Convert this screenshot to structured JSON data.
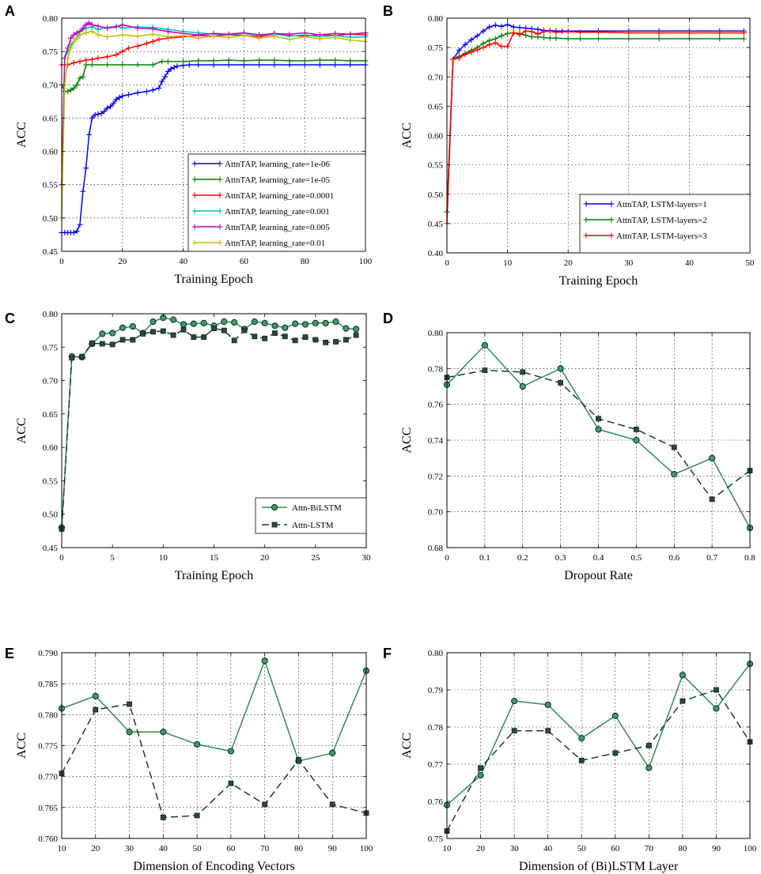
{
  "chart_data": [
    {
      "panel": "A",
      "type": "line",
      "xlabel": "Training Epoch",
      "ylabel": "ACC",
      "xlim": [
        0,
        100
      ],
      "ylim": [
        0.45,
        0.8
      ],
      "xticks": [
        0,
        20,
        40,
        60,
        80,
        100
      ],
      "yticks": [
        0.45,
        0.5,
        0.55,
        0.6,
        0.65,
        0.7,
        0.75,
        0.8
      ],
      "grid": true,
      "legend": "bottom-right",
      "marker": "plus",
      "series": [
        {
          "name": "AttnTAP, learning_rate=1e-06",
          "color": "#0000ff",
          "x": [
            0,
            1,
            2,
            3,
            4,
            5,
            6,
            7,
            8,
            9,
            10,
            11,
            12,
            13,
            14,
            15,
            16,
            17,
            18,
            19,
            20,
            22,
            25,
            28,
            30,
            32,
            33,
            34,
            35,
            36,
            37,
            38,
            40,
            42,
            45,
            50,
            55,
            60,
            65,
            70,
            75,
            80,
            85,
            90,
            95,
            100
          ],
          "y": [
            0.478,
            0.478,
            0.478,
            0.478,
            0.478,
            0.48,
            0.49,
            0.54,
            0.575,
            0.625,
            0.65,
            0.655,
            0.656,
            0.657,
            0.66,
            0.665,
            0.667,
            0.672,
            0.678,
            0.681,
            0.683,
            0.685,
            0.688,
            0.69,
            0.692,
            0.695,
            0.705,
            0.712,
            0.72,
            0.724,
            0.726,
            0.728,
            0.729,
            0.73,
            0.73,
            0.73,
            0.73,
            0.73,
            0.73,
            0.73,
            0.73,
            0.73,
            0.73,
            0.73,
            0.73,
            0.73
          ]
        },
        {
          "name": "AttnTAP, learning_rate=1e-05",
          "color": "#008000",
          "x": [
            0,
            1,
            2,
            3,
            4,
            5,
            6,
            7,
            8,
            10,
            15,
            20,
            25,
            30,
            33,
            35,
            40,
            45,
            50,
            55,
            60,
            65,
            70,
            75,
            80,
            85,
            90,
            95,
            100
          ],
          "y": [
            0.7,
            0.69,
            0.69,
            0.692,
            0.695,
            0.7,
            0.71,
            0.712,
            0.73,
            0.73,
            0.73,
            0.73,
            0.73,
            0.73,
            0.735,
            0.735,
            0.735,
            0.736,
            0.736,
            0.737,
            0.736,
            0.737,
            0.737,
            0.736,
            0.736,
            0.737,
            0.737,
            0.736,
            0.736
          ]
        },
        {
          "name": "AttnTAP, learning_rate=0.0001",
          "color": "#ff0000",
          "x": [
            0,
            2,
            4,
            6,
            8,
            10,
            12,
            15,
            18,
            20,
            22,
            25,
            28,
            30,
            32,
            35,
            40,
            45,
            50,
            55,
            60,
            65,
            70,
            75,
            80,
            85,
            90,
            95,
            100
          ],
          "y": [
            0.73,
            0.73,
            0.733,
            0.735,
            0.737,
            0.738,
            0.74,
            0.742,
            0.745,
            0.75,
            0.755,
            0.758,
            0.762,
            0.765,
            0.768,
            0.77,
            0.772,
            0.774,
            0.773,
            0.775,
            0.774,
            0.772,
            0.776,
            0.774,
            0.773,
            0.775,
            0.774,
            0.776,
            0.775
          ]
        },
        {
          "name": "AttnTAP, learning_rate=0.001",
          "color": "#00bfbf",
          "x": [
            0,
            1,
            2,
            3,
            4,
            5,
            6,
            8,
            10,
            12,
            15,
            18,
            20,
            25,
            30,
            35,
            40,
            45,
            50,
            55,
            60,
            65,
            70,
            75,
            80,
            85,
            90,
            95,
            100
          ],
          "y": [
            0.55,
            0.74,
            0.75,
            0.76,
            0.765,
            0.77,
            0.78,
            0.785,
            0.787,
            0.783,
            0.786,
            0.788,
            0.785,
            0.787,
            0.786,
            0.783,
            0.78,
            0.778,
            0.776,
            0.775,
            0.777,
            0.774,
            0.776,
            0.773,
            0.775,
            0.772,
            0.774,
            0.771,
            0.772
          ]
        },
        {
          "name": "AttnTAP, learning_rate=0.005",
          "color": "#bf00bf",
          "x": [
            0,
            1,
            2,
            3,
            4,
            5,
            6,
            7,
            8,
            9,
            10,
            12,
            15,
            18,
            20,
            25,
            30,
            35,
            40,
            45,
            50,
            55,
            60,
            65,
            70,
            75,
            80,
            85,
            90,
            95,
            100
          ],
          "y": [
            0.55,
            0.74,
            0.755,
            0.77,
            0.775,
            0.778,
            0.78,
            0.785,
            0.79,
            0.793,
            0.79,
            0.788,
            0.785,
            0.787,
            0.79,
            0.785,
            0.784,
            0.78,
            0.777,
            0.775,
            0.777,
            0.776,
            0.778,
            0.775,
            0.777,
            0.776,
            0.778,
            0.775,
            0.777,
            0.776,
            0.778
          ]
        },
        {
          "name": "AttnTAP, learning_rate=0.01",
          "color": "#bfbf00",
          "x": [
            0,
            1,
            2,
            3,
            4,
            5,
            6,
            8,
            10,
            12,
            15,
            20,
            25,
            30,
            35,
            40,
            45,
            50,
            55,
            60,
            65,
            70,
            75,
            80,
            85,
            90,
            95,
            100
          ],
          "y": [
            0.5,
            0.7,
            0.74,
            0.755,
            0.765,
            0.77,
            0.775,
            0.778,
            0.78,
            0.775,
            0.772,
            0.775,
            0.773,
            0.776,
            0.772,
            0.774,
            0.77,
            0.773,
            0.771,
            0.774,
            0.77,
            0.773,
            0.768,
            0.772,
            0.769,
            0.771,
            0.767,
            0.765
          ]
        }
      ]
    },
    {
      "panel": "B",
      "type": "line",
      "xlabel": "Training Epoch",
      "ylabel": "ACC",
      "xlim": [
        0,
        50
      ],
      "ylim": [
        0.4,
        0.8
      ],
      "xticks": [
        0,
        10,
        20,
        30,
        40,
        50
      ],
      "yticks": [
        0.4,
        0.45,
        0.5,
        0.55,
        0.6,
        0.65,
        0.7,
        0.75,
        0.8
      ],
      "grid": true,
      "legend": "bottom-right",
      "marker": "plus",
      "series": [
        {
          "name": "AttnTAP, LSTM-layers=1",
          "color": "#0000ff",
          "x": [
            0,
            1,
            2,
            3,
            4,
            5,
            6,
            7,
            8,
            9,
            10,
            11,
            12,
            13,
            14,
            15,
            16,
            17,
            18,
            19,
            20,
            25,
            30,
            35,
            40,
            45,
            49
          ],
          "y": [
            0.47,
            0.73,
            0.745,
            0.755,
            0.763,
            0.77,
            0.778,
            0.785,
            0.788,
            0.786,
            0.789,
            0.785,
            0.784,
            0.783,
            0.782,
            0.781,
            0.779,
            0.779,
            0.778,
            0.778,
            0.778,
            0.778,
            0.778,
            0.778,
            0.778,
            0.778,
            0.778
          ]
        },
        {
          "name": "AttnTAP, LSTM-layers=2",
          "color": "#008000",
          "x": [
            0,
            1,
            2,
            3,
            4,
            5,
            6,
            7,
            8,
            9,
            10,
            11,
            12,
            13,
            14,
            15,
            16,
            17,
            18,
            20,
            22,
            25,
            30,
            35,
            40,
            45,
            49
          ],
          "y": [
            0.47,
            0.73,
            0.735,
            0.74,
            0.745,
            0.75,
            0.757,
            0.762,
            0.765,
            0.77,
            0.774,
            0.775,
            0.774,
            0.771,
            0.768,
            0.768,
            0.767,
            0.766,
            0.766,
            0.765,
            0.765,
            0.765,
            0.765,
            0.765,
            0.765,
            0.765,
            0.765
          ]
        },
        {
          "name": "AttnTAP, LSTM-layers=3",
          "color": "#ff0000",
          "x": [
            0,
            1,
            2,
            3,
            4,
            5,
            6,
            7,
            8,
            9,
            10,
            11,
            12,
            13,
            14,
            15,
            16,
            17,
            18,
            20,
            22,
            25,
            30,
            35,
            40,
            45,
            49
          ],
          "y": [
            0.45,
            0.73,
            0.732,
            0.738,
            0.742,
            0.746,
            0.75,
            0.755,
            0.758,
            0.752,
            0.752,
            0.775,
            0.772,
            0.778,
            0.777,
            0.773,
            0.777,
            0.778,
            0.776,
            0.777,
            0.776,
            0.776,
            0.775,
            0.775,
            0.775,
            0.775,
            0.775
          ]
        }
      ]
    },
    {
      "panel": "C",
      "type": "line",
      "xlabel": "Training Epoch",
      "ylabel": "ACC",
      "xlim": [
        0,
        30
      ],
      "ylim": [
        0.45,
        0.8
      ],
      "xticks": [
        0,
        5,
        10,
        15,
        20,
        25,
        30
      ],
      "yticks": [
        0.45,
        0.5,
        0.55,
        0.6,
        0.65,
        0.7,
        0.75,
        0.8
      ],
      "grid": false,
      "legend": "bottom-right",
      "series": [
        {
          "name": "Attn-BiLSTM",
          "color": "#2e8b57",
          "style": "solid",
          "marker": "circle",
          "x": [
            0,
            1,
            2,
            3,
            4,
            5,
            6,
            7,
            8,
            9,
            10,
            11,
            12,
            13,
            14,
            15,
            16,
            17,
            18,
            19,
            20,
            21,
            22,
            23,
            24,
            25,
            26,
            27,
            28,
            29
          ],
          "y": [
            0.48,
            0.736,
            0.735,
            0.755,
            0.77,
            0.771,
            0.779,
            0.781,
            0.771,
            0.788,
            0.794,
            0.791,
            0.784,
            0.785,
            0.786,
            0.782,
            0.788,
            0.787,
            0.777,
            0.788,
            0.786,
            0.782,
            0.779,
            0.785,
            0.784,
            0.786,
            0.786,
            0.788,
            0.778,
            0.777
          ]
        },
        {
          "name": "Attn-LSTM",
          "color": "#1a3a30",
          "style": "dashed",
          "marker": "square",
          "x": [
            0,
            1,
            2,
            3,
            4,
            5,
            6,
            7,
            8,
            9,
            10,
            11,
            12,
            13,
            14,
            15,
            16,
            17,
            18,
            19,
            20,
            21,
            22,
            23,
            24,
            25,
            26,
            27,
            28,
            29
          ],
          "y": [
            0.478,
            0.734,
            0.736,
            0.756,
            0.755,
            0.754,
            0.761,
            0.761,
            0.77,
            0.773,
            0.774,
            0.768,
            0.776,
            0.765,
            0.765,
            0.778,
            0.775,
            0.76,
            0.775,
            0.766,
            0.763,
            0.771,
            0.766,
            0.76,
            0.765,
            0.761,
            0.757,
            0.758,
            0.761,
            0.768
          ]
        }
      ]
    },
    {
      "panel": "D",
      "type": "line",
      "xlabel": "Dropout Rate",
      "ylabel": "ACC",
      "xlim": [
        0.0,
        0.8
      ],
      "ylim": [
        0.68,
        0.8
      ],
      "xticks": [
        0.0,
        0.1,
        0.2,
        0.3,
        0.4,
        0.5,
        0.6,
        0.7,
        0.8
      ],
      "yticks": [
        0.68,
        0.7,
        0.72,
        0.74,
        0.76,
        0.78,
        0.8
      ],
      "grid": true,
      "series": [
        {
          "name": "Attn-BiLSTM",
          "color": "#2e8b57",
          "style": "solid",
          "marker": "circle",
          "x": [
            0.0,
            0.1,
            0.2,
            0.3,
            0.4,
            0.5,
            0.6,
            0.7,
            0.8
          ],
          "y": [
            0.771,
            0.793,
            0.77,
            0.78,
            0.746,
            0.74,
            0.721,
            0.73,
            0.691
          ]
        },
        {
          "name": "Attn-LSTM",
          "color": "#1a3a30",
          "style": "dashed",
          "marker": "square",
          "x": [
            0.0,
            0.1,
            0.2,
            0.3,
            0.4,
            0.5,
            0.6,
            0.7,
            0.8
          ],
          "y": [
            0.775,
            0.779,
            0.778,
            0.772,
            0.752,
            0.746,
            0.736,
            0.707,
            0.723
          ]
        }
      ]
    },
    {
      "panel": "E",
      "type": "line",
      "xlabel": "Dimension of Encoding Vectors",
      "ylabel": "ACC",
      "xlim": [
        10,
        100
      ],
      "ylim": [
        0.76,
        0.79
      ],
      "xticks": [
        10,
        20,
        30,
        40,
        50,
        60,
        70,
        80,
        90,
        100
      ],
      "yticks": [
        0.76,
        0.765,
        0.77,
        0.775,
        0.78,
        0.785,
        0.79
      ],
      "grid": true,
      "series": [
        {
          "name": "Attn-BiLSTM",
          "color": "#2e8b57",
          "style": "solid",
          "marker": "circle",
          "x": [
            10,
            20,
            30,
            40,
            50,
            60,
            70,
            80,
            90,
            100
          ],
          "y": [
            0.781,
            0.783,
            0.7772,
            0.7772,
            0.7752,
            0.7741,
            0.7887,
            0.7725,
            0.7738,
            0.7871
          ]
        },
        {
          "name": "Attn-LSTM",
          "color": "#1a3a30",
          "style": "dashed",
          "marker": "square",
          "x": [
            10,
            20,
            30,
            40,
            50,
            60,
            70,
            80,
            90,
            100
          ],
          "y": [
            0.7705,
            0.7808,
            0.7817,
            0.7634,
            0.7637,
            0.7689,
            0.7655,
            0.7727,
            0.7655,
            0.7641
          ]
        }
      ]
    },
    {
      "panel": "F",
      "type": "line",
      "xlabel": "Dimension of (Bi)LSTM Layer",
      "ylabel": "ACC",
      "xlim": [
        10,
        100
      ],
      "ylim": [
        0.75,
        0.8
      ],
      "xticks": [
        10,
        20,
        30,
        40,
        50,
        60,
        70,
        80,
        90,
        100
      ],
      "yticks": [
        0.75,
        0.76,
        0.77,
        0.78,
        0.79,
        0.8
      ],
      "grid": true,
      "series": [
        {
          "name": "Attn-BiLSTM",
          "color": "#2e8b57",
          "style": "solid",
          "marker": "circle",
          "x": [
            10,
            20,
            30,
            40,
            50,
            60,
            70,
            80,
            90,
            100
          ],
          "y": [
            0.759,
            0.767,
            0.787,
            0.786,
            0.777,
            0.783,
            0.769,
            0.794,
            0.785,
            0.797
          ]
        },
        {
          "name": "Attn-LSTM",
          "color": "#1a3a30",
          "style": "dashed",
          "marker": "square",
          "x": [
            10,
            20,
            30,
            40,
            50,
            60,
            70,
            80,
            90,
            100
          ],
          "y": [
            0.752,
            0.769,
            0.779,
            0.779,
            0.771,
            0.773,
            0.775,
            0.787,
            0.79,
            0.776
          ]
        }
      ]
    }
  ]
}
